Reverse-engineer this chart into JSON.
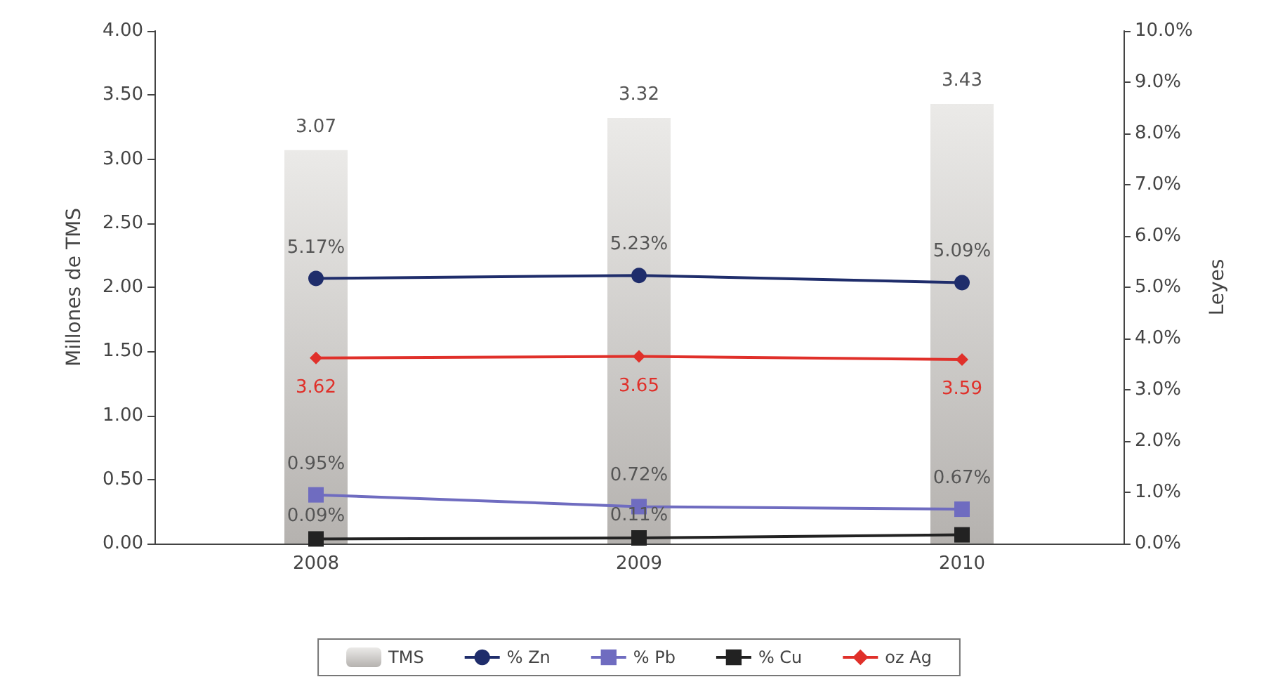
{
  "chart_data": {
    "type": "bar",
    "ylabel": "Millones de TMS",
    "y2label": "Leyes",
    "categories": [
      "2008",
      "2009",
      "2010"
    ],
    "series": [
      {
        "name": "TMS",
        "color": "#b5b2af",
        "values": [
          3.07,
          3.32,
          3.43
        ],
        "value_labels": [
          "3.07",
          "3.32",
          "3.43"
        ]
      },
      {
        "name": "% Zn",
        "type": "line",
        "axis": "y2",
        "marker": "circle",
        "color": "#1f2d6b",
        "values": [
          5.17,
          5.23,
          5.09
        ],
        "value_labels": [
          "5.17%",
          "5.23%",
          "5.09%"
        ]
      },
      {
        "name": "% Pb",
        "type": "line",
        "axis": "y2",
        "marker": "square",
        "color": "#6f6cc0",
        "values": [
          0.95,
          0.72,
          0.67
        ],
        "value_labels": [
          "0.95%",
          "0.72%",
          "0.67%"
        ]
      },
      {
        "name": "% Cu",
        "type": "line",
        "axis": "y2",
        "marker": "square",
        "color": "#222222",
        "values": [
          0.09,
          0.11,
          0.17
        ],
        "value_labels": [
          "0.09%",
          "0.11%",
          null
        ]
      },
      {
        "name": "oz Ag",
        "type": "line",
        "axis": "y2",
        "marker": "diamond",
        "color": "#e0302a",
        "values": [
          3.62,
          3.65,
          3.59
        ],
        "value_labels": [
          "3.62",
          "3.65",
          "3.59"
        ]
      }
    ],
    "ylim": [
      0,
      4
    ],
    "yticks": [
      {
        "value": 0,
        "label": "0.00"
      },
      {
        "value": 0.5,
        "label": "0.50"
      },
      {
        "value": 1,
        "label": "1.00"
      },
      {
        "value": 1.5,
        "label": "1.50"
      },
      {
        "value": 2,
        "label": "2.00"
      },
      {
        "value": 2.5,
        "label": "2.50"
      },
      {
        "value": 3,
        "label": "3.00"
      },
      {
        "value": 3.5,
        "label": "3.50"
      },
      {
        "value": 4,
        "label": "4.00"
      }
    ],
    "y2lim": [
      0,
      10
    ],
    "y2ticks": [
      {
        "value": 0,
        "label": "0.0%"
      },
      {
        "value": 1,
        "label": "1.0%"
      },
      {
        "value": 2,
        "label": "2.0%"
      },
      {
        "value": 3,
        "label": "3.0%"
      },
      {
        "value": 4,
        "label": "4.0%"
      },
      {
        "value": 5,
        "label": "5.0%"
      },
      {
        "value": 6,
        "label": "6.0%"
      },
      {
        "value": 7,
        "label": "7.0%"
      },
      {
        "value": 8,
        "label": "8.0%"
      },
      {
        "value": 9,
        "label": "9.0%"
      },
      {
        "value": 10,
        "label": "10.0%"
      }
    ],
    "grid": false,
    "legend": "bottom"
  }
}
